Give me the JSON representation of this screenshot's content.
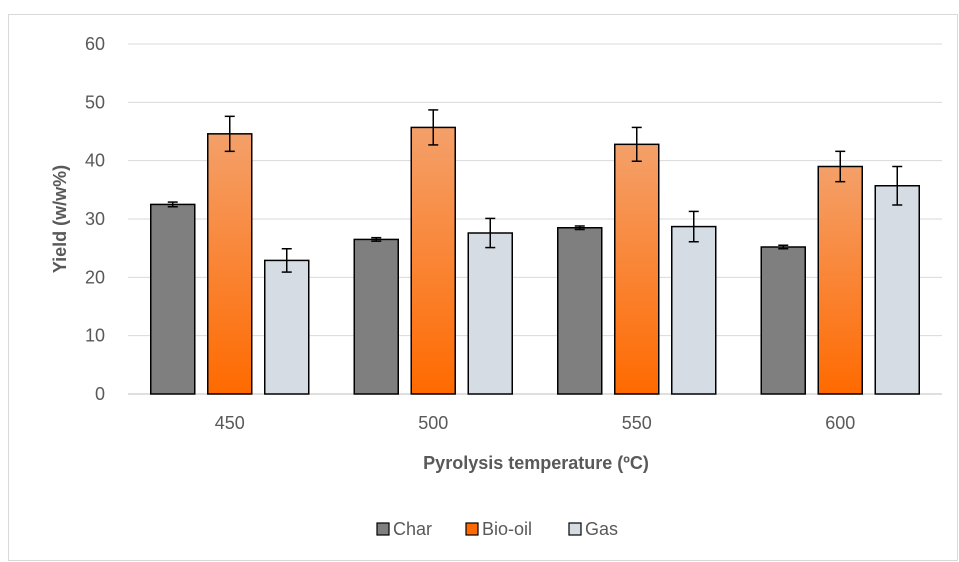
{
  "chart_data": {
    "type": "bar",
    "title": "",
    "xlabel": "Pyrolysis temperature (ºC)",
    "ylabel": "Yield (w/w%)",
    "categories": [
      "450",
      "500",
      "550",
      "600"
    ],
    "ylim": [
      0,
      60
    ],
    "yticks": [
      "0",
      "10",
      "20",
      "30",
      "40",
      "50",
      "60"
    ],
    "grid": true,
    "legend_position": "bottom",
    "series": [
      {
        "name": "Char",
        "color": "#7f7f7f",
        "values": [
          32.5,
          26.5,
          28.5,
          25.2
        ],
        "errors": [
          0.4,
          0.3,
          0.3,
          0.3
        ]
      },
      {
        "name": "Bio-oil",
        "color": "#ff6a00",
        "values": [
          44.6,
          45.7,
          42.8,
          39.0
        ],
        "errors": [
          3.0,
          3.0,
          2.9,
          2.6
        ]
      },
      {
        "name": "Gas",
        "color": "#d6dce4",
        "values": [
          22.9,
          27.6,
          28.7,
          35.7
        ],
        "errors": [
          2.0,
          2.5,
          2.6,
          3.3
        ]
      }
    ]
  }
}
